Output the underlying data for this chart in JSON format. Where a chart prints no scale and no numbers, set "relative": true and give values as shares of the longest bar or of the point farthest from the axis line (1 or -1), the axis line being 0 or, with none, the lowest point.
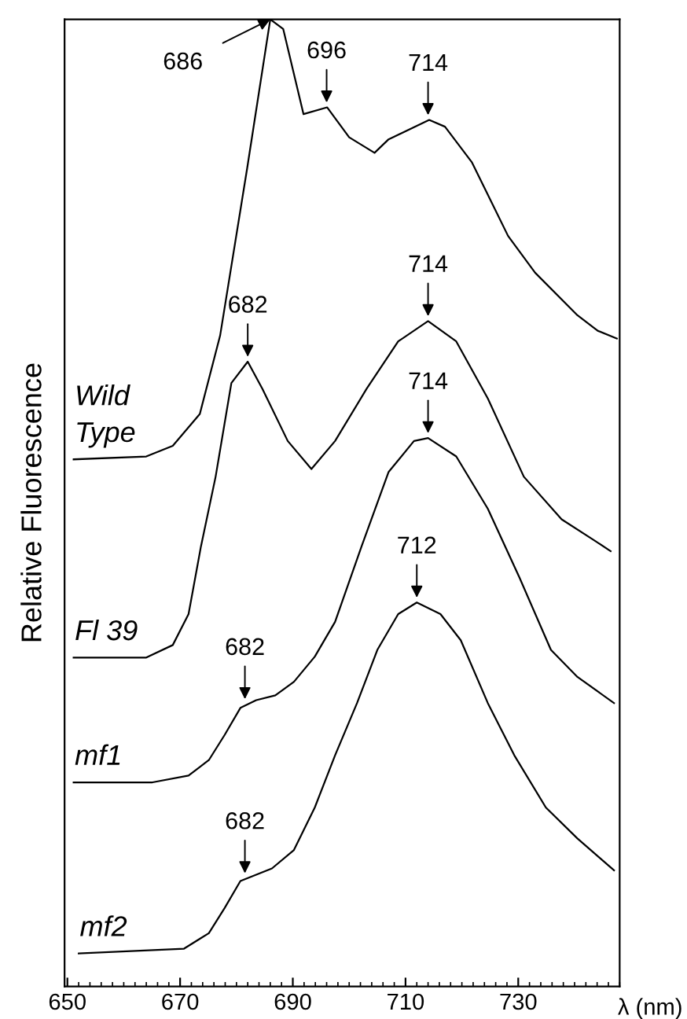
{
  "chart_data": {
    "type": "line",
    "relative": true,
    "xlabel": "λ (nm)",
    "ylabel": "Relative Fluorescence",
    "xlim": [
      649.5,
      748
    ],
    "xticks": [
      650,
      670,
      690,
      710,
      730
    ],
    "tick_labels": "x",
    "grid": false,
    "legend": false,
    "marker": "none",
    "line_style": "solid",
    "series": [
      {
        "name": "Wild\nType",
        "color": "#000000",
        "x": [
          651.1,
          664.0,
          668.7,
          673.5,
          677.1,
          681.9,
          686.0,
          688.3,
          691.9,
          696.1,
          700.0,
          704.5,
          707.0,
          714.2,
          717.0,
          721.8,
          728.2,
          733.0,
          740.5,
          744.1,
          747.5
        ],
        "values": [
          0.545,
          0.548,
          0.559,
          0.592,
          0.673,
          0.846,
          1.0,
          0.99,
          0.902,
          0.909,
          0.878,
          0.862,
          0.876,
          0.896,
          0.889,
          0.852,
          0.776,
          0.738,
          0.694,
          0.678,
          0.67
        ]
      },
      {
        "name": "Fl 39",
        "color": "#000000",
        "x": [
          651.1,
          664.0,
          668.7,
          671.5,
          673.7,
          676.3,
          679.1,
          682.0,
          684.6,
          689.1,
          693.3,
          697.5,
          703.1,
          708.7,
          714.0,
          719.0,
          724.6,
          731.0,
          737.7,
          743.3,
          746.4
        ],
        "values": [
          0.34,
          0.34,
          0.353,
          0.385,
          0.455,
          0.527,
          0.624,
          0.646,
          0.618,
          0.564,
          0.535,
          0.564,
          0.618,
          0.667,
          0.688,
          0.667,
          0.608,
          0.527,
          0.483,
          0.462,
          0.45
        ]
      },
      {
        "name": "mf1",
        "color": "#000000",
        "x": [
          651.1,
          665.1,
          671.5,
          675.1,
          677.9,
          680.7,
          683.5,
          686.9,
          690.2,
          693.9,
          697.5,
          702.2,
          707.0,
          711.5,
          714.0,
          719.0,
          724.6,
          730.2,
          735.8,
          740.5,
          747.0
        ],
        "values": [
          0.211,
          0.211,
          0.218,
          0.234,
          0.26,
          0.288,
          0.296,
          0.301,
          0.315,
          0.341,
          0.377,
          0.455,
          0.532,
          0.564,
          0.567,
          0.548,
          0.494,
          0.423,
          0.348,
          0.32,
          0.293
        ]
      },
      {
        "name": "mf2",
        "color": "#000000",
        "x": [
          652.0,
          670.7,
          675.1,
          677.9,
          680.7,
          686.3,
          690.2,
          693.9,
          697.5,
          701.4,
          705.0,
          708.7,
          712.0,
          716.2,
          719.8,
          724.6,
          729.3,
          734.9,
          740.5,
          747.0
        ],
        "values": [
          0.034,
          0.039,
          0.055,
          0.081,
          0.109,
          0.122,
          0.141,
          0.185,
          0.239,
          0.293,
          0.348,
          0.385,
          0.397,
          0.385,
          0.358,
          0.293,
          0.239,
          0.185,
          0.153,
          0.12
        ]
      }
    ],
    "annotations": [
      {
        "text": "686",
        "x": 686,
        "y": 1.0
      },
      {
        "text": "696",
        "x": 696,
        "y": 0.909
      },
      {
        "text": "714",
        "x": 714,
        "y": 0.896
      },
      {
        "text": "682",
        "x": 682,
        "y": 0.646
      },
      {
        "text": "714",
        "x": 714,
        "y": 0.688
      },
      {
        "text": "714",
        "x": 714,
        "y": 0.567
      },
      {
        "text": "682",
        "x": 681.5,
        "y": 0.292
      },
      {
        "text": "712",
        "x": 712,
        "y": 0.397
      },
      {
        "text": "682",
        "x": 681.5,
        "y": 0.112
      }
    ]
  }
}
